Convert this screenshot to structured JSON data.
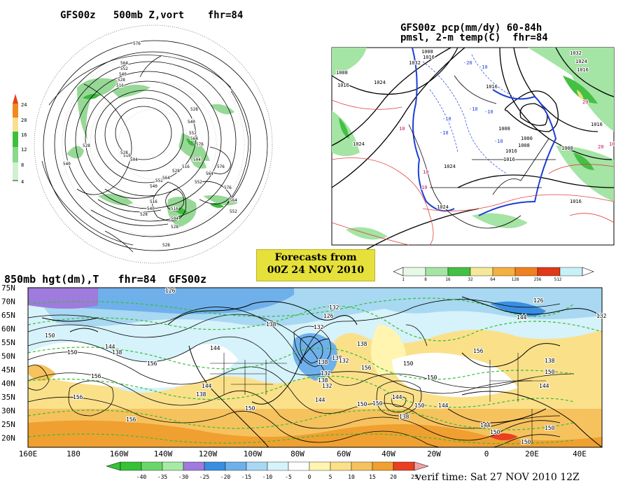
{
  "panel_vort": {
    "title": "GFS00z   500mb Z,vort    fhr=84",
    "scale_labels": [
      "24",
      "20",
      "16",
      "12",
      "8",
      "4"
    ],
    "contour_labels": [
      "576",
      "564",
      "552",
      "540",
      "528",
      "516",
      "528",
      "540",
      "552",
      "564",
      "576",
      "504",
      "516",
      "528",
      "540",
      "552",
      "564",
      "528",
      "516",
      "504",
      "516",
      "528",
      "540",
      "552",
      "564",
      "576",
      "576",
      "552",
      "564",
      "540",
      "528",
      "516",
      "504",
      "528",
      "528"
    ]
  },
  "panel_pop": {
    "title_line1": "GFS00z pcp(mm/dy) 60-84h",
    "title_line2": "pmsl, 2-m temp(C)  fhr=84",
    "contour_labels": [
      "1032",
      "1024",
      "1016",
      "1008",
      "1016",
      "1024",
      "1008",
      "1016",
      "1032",
      "1024",
      "1016",
      "1008",
      "1000",
      "1008",
      "1016",
      "1024",
      "1016",
      "1024",
      "1008",
      "1016",
      "1016"
    ],
    "temp_labels": [
      "-10",
      "-20",
      "-10",
      "-10",
      "-10",
      "10",
      "10",
      "10",
      "20",
      "20",
      "10",
      "-10",
      "-10"
    ],
    "colorbar_ticks": [
      "1",
      "8",
      "16",
      "32",
      "64",
      "128",
      "256",
      "512"
    ]
  },
  "banner": {
    "line1": "Forecasts from",
    "line2": "00Z 24 NOV 2010"
  },
  "panel_850": {
    "title": "850mb hgt(dm),T   fhr=84  GFS00z",
    "lat_labels": [
      "75N",
      "70N",
      "65N",
      "60N",
      "55N",
      "50N",
      "45N",
      "40N",
      "35N",
      "30N",
      "25N",
      "20N"
    ],
    "lon_labels": [
      "160E",
      "180",
      "160W",
      "140W",
      "120W",
      "100W",
      "80W",
      "60W",
      "40W",
      "20W",
      "0",
      "20E",
      "40E"
    ],
    "height_labels": [
      "126",
      "132",
      "126",
      "138",
      "132",
      "150",
      "150",
      "144",
      "138",
      "144",
      "156",
      "138",
      "132",
      "138",
      "150",
      "138",
      "150",
      "144",
      "156",
      "150",
      "144",
      "138",
      "156",
      "156",
      "150",
      "144",
      "132",
      "138",
      "132",
      "138",
      "144",
      "150",
      "156",
      "150",
      "144",
      "138",
      "126",
      "132",
      "144",
      "156",
      "150",
      "150",
      "150",
      "144",
      "150"
    ],
    "colorbar_ticks": [
      "-40",
      "-35",
      "-30",
      "-25",
      "-20",
      "-15",
      "-10",
      "-5",
      "0",
      "5",
      "10",
      "15",
      "20",
      "25"
    ],
    "colors": {
      "-40": "#36c236",
      "-35": "#6ad66a",
      "-30": "#a6eaa6",
      "-25": "#9e7bdc",
      "-20": "#3a8ee0",
      "-15": "#6fb0ea",
      "-10": "#a8d8f2",
      "-5": "#d6f2fa",
      "0": "#ffffff",
      "5": "#fff5b0",
      "10": "#fbe08a",
      "15": "#f6c25e",
      "20": "#f0a030",
      "25": "#e84020"
    }
  },
  "verif": "verif time: Sat 27 NOV 2010 12Z"
}
